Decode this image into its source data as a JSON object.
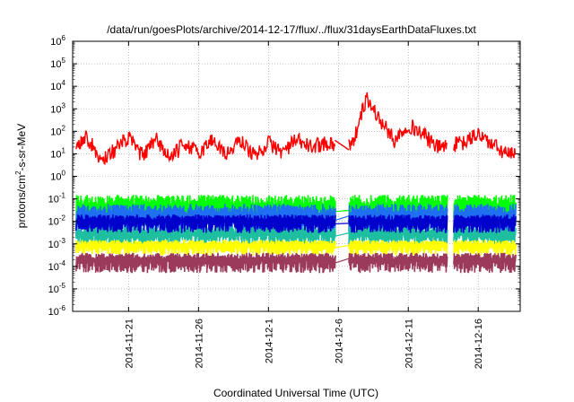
{
  "chart_data": {
    "type": "line",
    "title": "/data/run/goesPlots/archive/2014-12-17/flux/../flux/31daysEarthDataFluxes.txt",
    "xlabel": "Coordinated Universal Time (UTC)",
    "ylabel": {
      "prefix": "protons/cm",
      "sup": "2",
      "suffix": "-s-sr-MeV"
    },
    "yscale": "log",
    "ylim": [
      1e-06,
      1000000.0
    ],
    "xlim": [
      "2014-11-17",
      "2014-12-19"
    ],
    "grid": true,
    "y_ticks": [
      {
        "base": "10",
        "exp": "-6",
        "value": 1e-06
      },
      {
        "base": "10",
        "exp": "-5",
        "value": 1e-05
      },
      {
        "base": "10",
        "exp": "-4",
        "value": 0.0001
      },
      {
        "base": "10",
        "exp": "-3",
        "value": 0.001
      },
      {
        "base": "10",
        "exp": "-2",
        "value": 0.01
      },
      {
        "base": "10",
        "exp": "-1",
        "value": 0.1
      },
      {
        "base": "10",
        "exp": "0",
        "value": 1
      },
      {
        "base": "10",
        "exp": "1",
        "value": 10
      },
      {
        "base": "10",
        "exp": "2",
        "value": 100
      },
      {
        "base": "10",
        "exp": "3",
        "value": 1000
      },
      {
        "base": "10",
        "exp": "4",
        "value": 10000
      },
      {
        "base": "10",
        "exp": "5",
        "value": 100000
      },
      {
        "base": "10",
        "exp": "6",
        "value": 1000000
      }
    ],
    "x_ticks": [
      {
        "label": "2014-11-21",
        "date": "2014-11-21"
      },
      {
        "label": "2014-11-26",
        "date": "2014-11-26"
      },
      {
        "label": "2014-12-1",
        "date": "2014-12-01"
      },
      {
        "label": "2014-12-6",
        "date": "2014-12-06"
      },
      {
        "label": "2014-12-11",
        "date": "2014-12-11"
      },
      {
        "label": "2014-12-16",
        "date": "2014-12-16"
      }
    ],
    "data_gaps": [
      {
        "from": "2014-12-05T18:00",
        "to": "2014-12-06T18:00"
      },
      {
        "from": "2014-12-13T18:00",
        "to": "2014-12-14T06:00"
      }
    ],
    "series": [
      {
        "color": "#ff0000",
        "band_low": 0.7,
        "band_high": 20,
        "x": [
          "2014-11-17",
          "2014-11-18",
          "2014-11-19",
          "2014-11-20",
          "2014-11-21",
          "2014-11-22",
          "2014-11-23",
          "2014-11-24",
          "2014-11-25",
          "2014-11-26",
          "2014-11-27",
          "2014-11-28",
          "2014-11-29",
          "2014-11-30",
          "2014-12-01",
          "2014-12-02",
          "2014-12-03",
          "2014-12-04",
          "2014-12-05",
          "2014-12-07",
          "2014-12-08",
          "2014-12-09",
          "2014-12-10",
          "2014-12-11",
          "2014-12-12",
          "2014-12-13",
          "2014-12-15",
          "2014-12-16",
          "2014-12-17",
          "2014-12-18",
          "2014-12-19"
        ],
        "y": [
          20,
          60,
          5,
          15,
          50,
          8,
          40,
          6,
          30,
          10,
          45,
          9,
          40,
          8,
          30,
          12,
          40,
          20,
          30,
          25,
          3000,
          300,
          40,
          200,
          80,
          20,
          30,
          80,
          25,
          10,
          8
        ]
      },
      {
        "color": "#00ff00",
        "band_low": 0.005,
        "band_high": 0.15
      },
      {
        "color": "#1e6ff2",
        "band_low": 0.002,
        "band_high": 0.06
      },
      {
        "color": "#0000cd",
        "band_low": 0.003,
        "band_high": 0.02
      },
      {
        "color": "#1ebea0",
        "band_low": 0.0008,
        "band_high": 0.006
      },
      {
        "color": "#ffff00",
        "band_low": 0.0003,
        "band_high": 0.0015
      },
      {
        "color": "#9b3a5a",
        "band_low": 5e-05,
        "band_high": 0.0004
      }
    ]
  }
}
